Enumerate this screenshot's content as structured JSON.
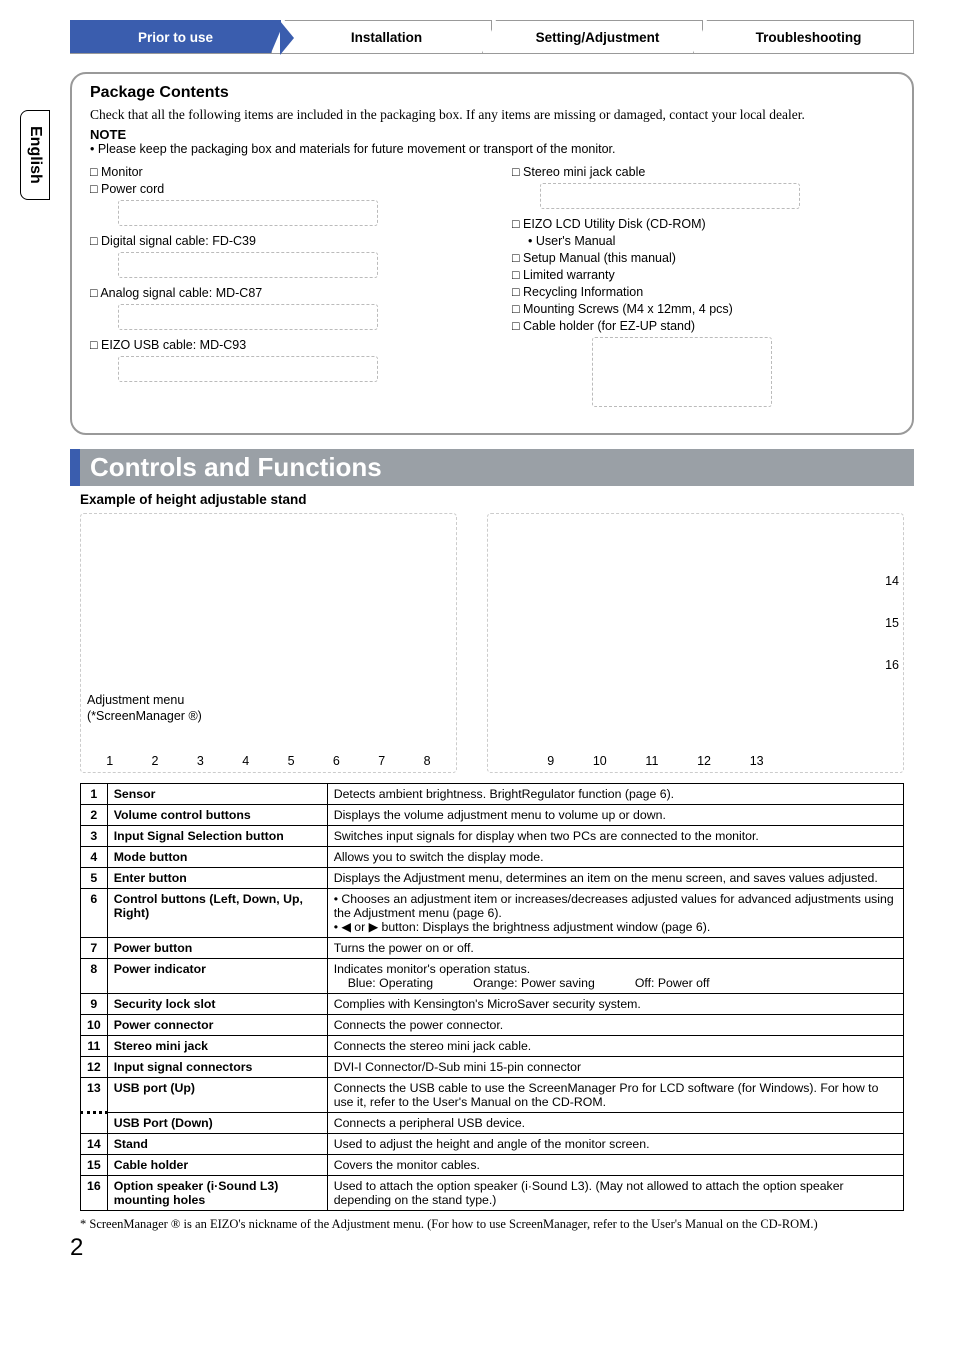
{
  "lang_tab": "English",
  "tabs": [
    {
      "label": "Prior to use",
      "active": true
    },
    {
      "label": "Installation",
      "active": false
    },
    {
      "label": "Setting/Adjustment",
      "active": false
    },
    {
      "label": "Troubleshooting",
      "active": false
    }
  ],
  "package": {
    "heading": "Package Contents",
    "intro": "Check that all the following items are included in the packaging box. If any items are missing or damaged, contact your local dealer.",
    "note_label": "NOTE",
    "note_line": "• Please keep the packaging box and materials for future movement or transport of the monitor.",
    "left_items": [
      "□ Monitor",
      "□ Power cord",
      "",
      "□ Digital signal cable: FD-C39",
      "",
      "□ Analog signal cable: MD-C87",
      "",
      "□ EIZO USB cable: MD-C93",
      ""
    ],
    "right_items": [
      "□ Stereo mini jack cable",
      "",
      "□ EIZO LCD Utility Disk (CD-ROM)",
      "   • User's Manual",
      "□ Setup Manual (this manual)",
      "□ Limited warranty",
      "□ Recycling Information",
      "□ Mounting Screws (M4 x 12mm, 4 pcs)",
      "□ Cable holder (for EZ-UP stand)"
    ]
  },
  "section_title": "Controls and Functions",
  "example_caption": "Example of height adjustable stand",
  "adj_menu_caption_1": "Adjustment menu",
  "adj_menu_caption_2": "(*ScreenManager ®)",
  "front_nums": [
    "1",
    "2",
    "3",
    "4",
    "5",
    "6",
    "7",
    "8"
  ],
  "back_nums": [
    "9",
    "10",
    "11",
    "12",
    "13"
  ],
  "side_nums": [
    "14",
    "15",
    "16"
  ],
  "table_rows": [
    {
      "n": "1",
      "name": "Sensor",
      "desc": "Detects ambient brightness. BrightRegulator function (page 6)."
    },
    {
      "n": "2",
      "name": "Volume control buttons",
      "desc": "Displays the volume adjustment menu to volume up or down."
    },
    {
      "n": "3",
      "name": "Input Signal Selection button",
      "desc": "Switches input signals for display when two PCs are connected to the monitor."
    },
    {
      "n": "4",
      "name": "Mode button",
      "desc": "Allows you to switch the display mode."
    },
    {
      "n": "5",
      "name": "Enter button",
      "desc": "Displays the Adjustment menu, determines an item on the menu screen, and saves values adjusted."
    },
    {
      "n": "6",
      "name": "Control buttons (Left, Down, Up, Right)",
      "desc": "• Chooses an adjustment item or increases/decreases adjusted values for advanced adjustments using the Adjustment menu (page 6).\n• ◀ or ▶ button: Displays the brightness adjustment window (page 6)."
    },
    {
      "n": "7",
      "name": "Power button",
      "desc": "Turns the power on or off."
    },
    {
      "n": "8",
      "name": "Power indicator",
      "desc": "Indicates monitor's operation status.",
      "status": {
        "blue": "Blue: Operating",
        "orange": "Orange: Power saving",
        "off": "Off: Power off"
      }
    },
    {
      "n": "9",
      "name": "Security lock slot",
      "desc": "Complies with Kensington's MicroSaver security system."
    },
    {
      "n": "10",
      "name": "Power connector",
      "desc": "Connects the power connector."
    },
    {
      "n": "11",
      "name": "Stereo mini jack",
      "desc": "Connects the stereo mini jack cable."
    },
    {
      "n": "12",
      "name": "Input signal connectors",
      "desc": "DVI-I Connector/D-Sub mini 15-pin connector"
    },
    {
      "n": "13",
      "name": "USB port (Up)",
      "desc": "Connects the USB cable to use the ScreenManager Pro for LCD software (for Windows). For how to use it, refer to the User's Manual on the CD-ROM."
    },
    {
      "n": "",
      "name": "USB Port (Down)",
      "desc": "Connects a peripheral USB device.",
      "dotted": true
    },
    {
      "n": "14",
      "name": "Stand",
      "desc": "Used to adjust the height and angle of the monitor screen."
    },
    {
      "n": "15",
      "name": "Cable holder",
      "desc": "Covers the monitor cables."
    },
    {
      "n": "16",
      "name": "Option speaker (i·Sound L3) mounting holes",
      "desc": "Used to attach the option speaker (i·Sound L3). (May not allowed to attach the option speaker depending on the stand type.)"
    }
  ],
  "footnote": "* ScreenManager ® is an EIZO's nickname of the Adjustment menu. (For how to use ScreenManager, refer to the User's Manual on the CD-ROM.)",
  "page_number": "2"
}
